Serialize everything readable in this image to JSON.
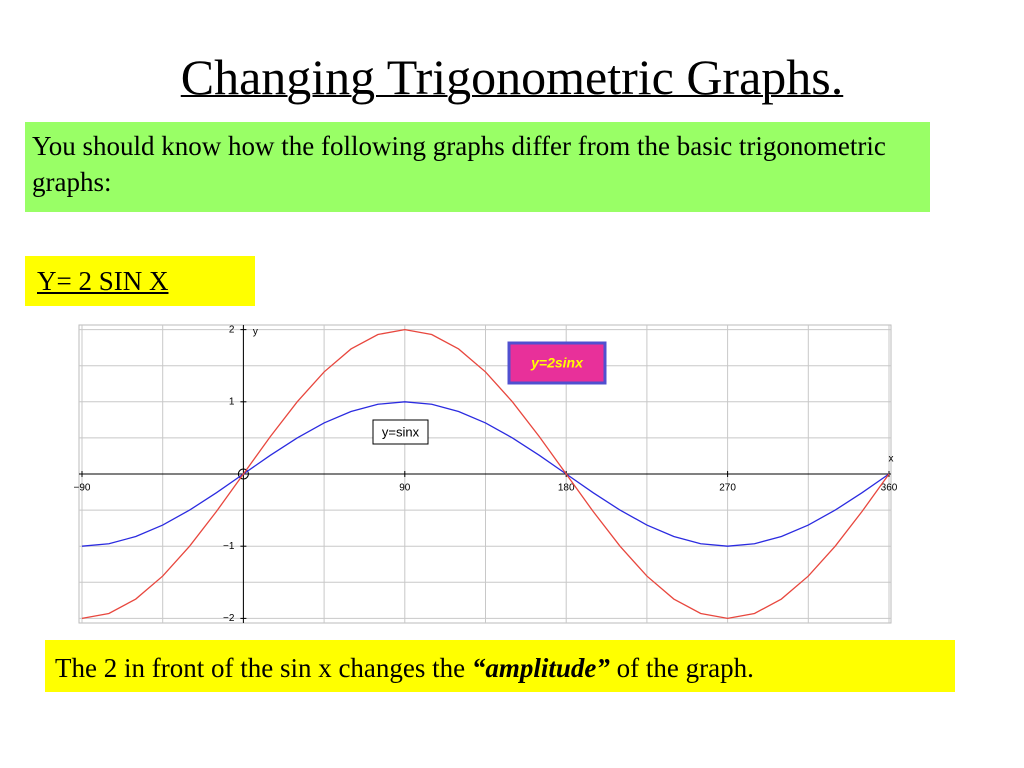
{
  "title": "Changing Trigonometric Graphs.",
  "intro": "You should know how the following graphs differ from the basic trigonometric graphs:",
  "equation": "Y= 2 SIN X",
  "conclusion": {
    "before": "The 2 in front of the sin x changes the ",
    "emphasis": "“amplitude”",
    "after": " of the graph."
  },
  "chart_data": {
    "type": "line",
    "x_label": "x",
    "y_label": "y",
    "x": [
      -90,
      -75,
      -60,
      -45,
      -30,
      -15,
      0,
      15,
      30,
      45,
      60,
      75,
      90,
      105,
      120,
      135,
      150,
      165,
      180,
      195,
      210,
      225,
      240,
      255,
      270,
      285,
      300,
      315,
      330,
      345,
      360
    ],
    "series": [
      {
        "name": "y=sinx",
        "color": "#2b2be0",
        "values": [
          -1,
          -0.966,
          -0.866,
          -0.707,
          -0.5,
          -0.259,
          0,
          0.259,
          0.5,
          0.707,
          0.866,
          0.966,
          1,
          0.966,
          0.866,
          0.707,
          0.5,
          0.259,
          0,
          -0.259,
          -0.5,
          -0.707,
          -0.866,
          -0.966,
          -1,
          -0.966,
          -0.866,
          -0.707,
          -0.5,
          -0.259,
          0
        ]
      },
      {
        "name": "y=2sinx",
        "color": "#e8473e",
        "values": [
          -2,
          -1.932,
          -1.732,
          -1.414,
          -1,
          -0.518,
          0,
          0.518,
          1,
          1.414,
          1.732,
          1.932,
          2,
          1.932,
          1.732,
          1.414,
          1,
          0.518,
          0,
          -0.518,
          -1,
          -1.414,
          -1.732,
          -1.932,
          -2,
          -1.932,
          -1.732,
          -1.414,
          -1,
          -0.518,
          0
        ]
      }
    ],
    "xlim": [
      -90,
      360
    ],
    "ylim": [
      -2.05,
      2.05
    ],
    "xticks": [
      {
        "value": -90,
        "label": "−90"
      },
      90,
      180,
      270,
      360
    ],
    "yticks": [
      {
        "value": -2,
        "label": "−2"
      },
      {
        "value": -1,
        "label": "−1"
      },
      1,
      2
    ],
    "x_gridlines": [
      -90,
      -45,
      0,
      45,
      90,
      135,
      180,
      225,
      270,
      315,
      360
    ],
    "y_gridlines": [
      -2,
      -1.5,
      -1,
      -0.5,
      0,
      0.5,
      1,
      1.5,
      2
    ],
    "grid": true
  }
}
